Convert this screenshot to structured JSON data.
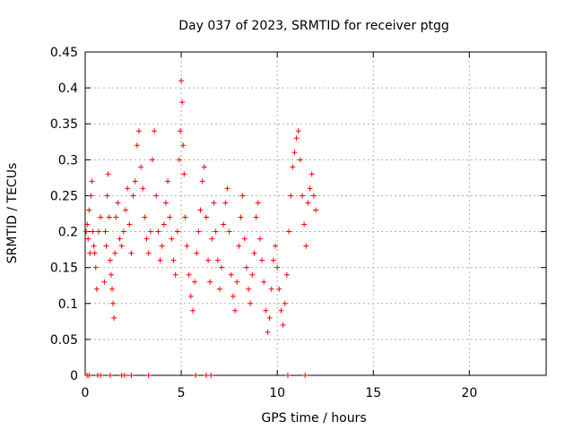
{
  "chart_data": {
    "type": "scatter",
    "title": "Day 037 of 2023, SRMTID for receiver ptgg",
    "xlabel": "GPS time / hours",
    "ylabel": "SRMTID / TECUs",
    "xlim": [
      0,
      24
    ],
    "ylim": [
      0,
      0.45
    ],
    "x_ticks": [
      0,
      5,
      10,
      15,
      20
    ],
    "x_tick_labels": [
      "0",
      "5",
      "10",
      "15",
      "20"
    ],
    "y_ticks": [
      0,
      0.05,
      0.1,
      0.15,
      0.2,
      0.25,
      0.3,
      0.35,
      0.4,
      0.45
    ],
    "y_tick_labels": [
      "0",
      "0.05",
      "0.1",
      "0.15",
      "0.2",
      "0.25",
      "0.3",
      "0.35",
      "0.4",
      "0.45"
    ],
    "grid": true,
    "marker": "plus",
    "series": [
      {
        "name": "SRMTID",
        "color": "#ff0000",
        "points": [
          [
            0.05,
            0.2
          ],
          [
            0.1,
            0.21
          ],
          [
            0.15,
            0.19
          ],
          [
            0.2,
            0.23
          ],
          [
            0.25,
            0.17
          ],
          [
            0.3,
            0.25
          ],
          [
            0.35,
            0.27
          ],
          [
            0.4,
            0.2
          ],
          [
            0.45,
            0.18
          ],
          [
            0.5,
            0.17
          ],
          [
            0.55,
            0.15
          ],
          [
            0.6,
            0.12
          ],
          [
            0.7,
            0.2
          ],
          [
            0.8,
            0.22
          ],
          [
            1.0,
            0.13
          ],
          [
            1.05,
            0.2
          ],
          [
            1.1,
            0.18
          ],
          [
            1.15,
            0.25
          ],
          [
            1.2,
            0.28
          ],
          [
            1.25,
            0.22
          ],
          [
            1.3,
            0.16
          ],
          [
            1.35,
            0.14
          ],
          [
            1.4,
            0.12
          ],
          [
            1.45,
            0.1
          ],
          [
            1.5,
            0.08
          ],
          [
            1.55,
            0.17
          ],
          [
            1.6,
            0.22
          ],
          [
            1.7,
            0.24
          ],
          [
            1.8,
            0.19
          ],
          [
            1.9,
            0.18
          ],
          [
            2.0,
            0.2
          ],
          [
            2.1,
            0.23
          ],
          [
            2.2,
            0.26
          ],
          [
            2.3,
            0.21
          ],
          [
            2.4,
            0.17
          ],
          [
            2.5,
            0.25
          ],
          [
            2.6,
            0.27
          ],
          [
            2.7,
            0.32
          ],
          [
            2.8,
            0.34
          ],
          [
            2.9,
            0.29
          ],
          [
            3.0,
            0.26
          ],
          [
            3.1,
            0.22
          ],
          [
            3.2,
            0.19
          ],
          [
            3.3,
            0.17
          ],
          [
            3.4,
            0.2
          ],
          [
            3.5,
            0.3
          ],
          [
            3.6,
            0.34
          ],
          [
            3.7,
            0.25
          ],
          [
            3.8,
            0.2
          ],
          [
            3.9,
            0.16
          ],
          [
            4.0,
            0.18
          ],
          [
            4.1,
            0.21
          ],
          [
            4.2,
            0.24
          ],
          [
            4.3,
            0.27
          ],
          [
            4.4,
            0.22
          ],
          [
            4.5,
            0.19
          ],
          [
            4.6,
            0.16
          ],
          [
            4.7,
            0.14
          ],
          [
            4.8,
            0.2
          ],
          [
            4.9,
            0.3
          ],
          [
            4.95,
            0.34
          ],
          [
            5.0,
            0.41
          ],
          [
            5.05,
            0.38
          ],
          [
            5.1,
            0.32
          ],
          [
            5.15,
            0.28
          ],
          [
            5.2,
            0.22
          ],
          [
            5.3,
            0.18
          ],
          [
            5.4,
            0.14
          ],
          [
            5.5,
            0.11
          ],
          [
            5.6,
            0.09
          ],
          [
            5.7,
            0.13
          ],
          [
            5.8,
            0.17
          ],
          [
            5.9,
            0.2
          ],
          [
            6.0,
            0.23
          ],
          [
            6.1,
            0.27
          ],
          [
            6.2,
            0.29
          ],
          [
            6.3,
            0.22
          ],
          [
            6.4,
            0.16
          ],
          [
            6.5,
            0.13
          ],
          [
            6.6,
            0.19
          ],
          [
            6.7,
            0.24
          ],
          [
            6.8,
            0.2
          ],
          [
            6.9,
            0.16
          ],
          [
            7.0,
            0.12
          ],
          [
            7.1,
            0.15
          ],
          [
            7.2,
            0.21
          ],
          [
            7.3,
            0.24
          ],
          [
            7.4,
            0.26
          ],
          [
            7.5,
            0.2
          ],
          [
            7.6,
            0.14
          ],
          [
            7.7,
            0.11
          ],
          [
            7.8,
            0.09
          ],
          [
            7.9,
            0.13
          ],
          [
            8.0,
            0.18
          ],
          [
            8.1,
            0.22
          ],
          [
            8.2,
            0.25
          ],
          [
            8.3,
            0.19
          ],
          [
            8.4,
            0.15
          ],
          [
            8.5,
            0.12
          ],
          [
            8.6,
            0.1
          ],
          [
            8.7,
            0.14
          ],
          [
            8.8,
            0.17
          ],
          [
            8.9,
            0.22
          ],
          [
            9.0,
            0.24
          ],
          [
            9.1,
            0.19
          ],
          [
            9.2,
            0.16
          ],
          [
            9.3,
            0.13
          ],
          [
            9.4,
            0.09
          ],
          [
            9.5,
            0.06
          ],
          [
            9.6,
            0.08
          ],
          [
            9.7,
            0.12
          ],
          [
            9.8,
            0.16
          ],
          [
            9.9,
            0.18
          ],
          [
            10.0,
            0.15
          ],
          [
            10.1,
            0.12
          ],
          [
            10.2,
            0.09
          ],
          [
            10.3,
            0.07
          ],
          [
            10.4,
            0.1
          ],
          [
            10.5,
            0.14
          ],
          [
            10.6,
            0.2
          ],
          [
            10.7,
            0.25
          ],
          [
            10.8,
            0.29
          ],
          [
            10.9,
            0.31
          ],
          [
            11.0,
            0.33
          ],
          [
            11.1,
            0.34
          ],
          [
            11.2,
            0.3
          ],
          [
            11.3,
            0.25
          ],
          [
            11.4,
            0.21
          ],
          [
            11.5,
            0.18
          ],
          [
            11.6,
            0.24
          ],
          [
            11.7,
            0.26
          ],
          [
            11.8,
            0.28
          ],
          [
            11.9,
            0.25
          ],
          [
            12.0,
            0.23
          ],
          [
            0.1,
            0
          ],
          [
            0.2,
            0
          ],
          [
            0.65,
            0
          ],
          [
            0.8,
            0
          ],
          [
            1.3,
            0
          ],
          [
            1.9,
            0
          ],
          [
            2.05,
            0
          ],
          [
            2.4,
            0
          ],
          [
            3.3,
            0
          ],
          [
            5.75,
            0
          ],
          [
            6.3,
            0
          ],
          [
            6.55,
            0
          ],
          [
            10.55,
            0
          ],
          [
            11.45,
            0
          ]
        ]
      }
    ]
  }
}
